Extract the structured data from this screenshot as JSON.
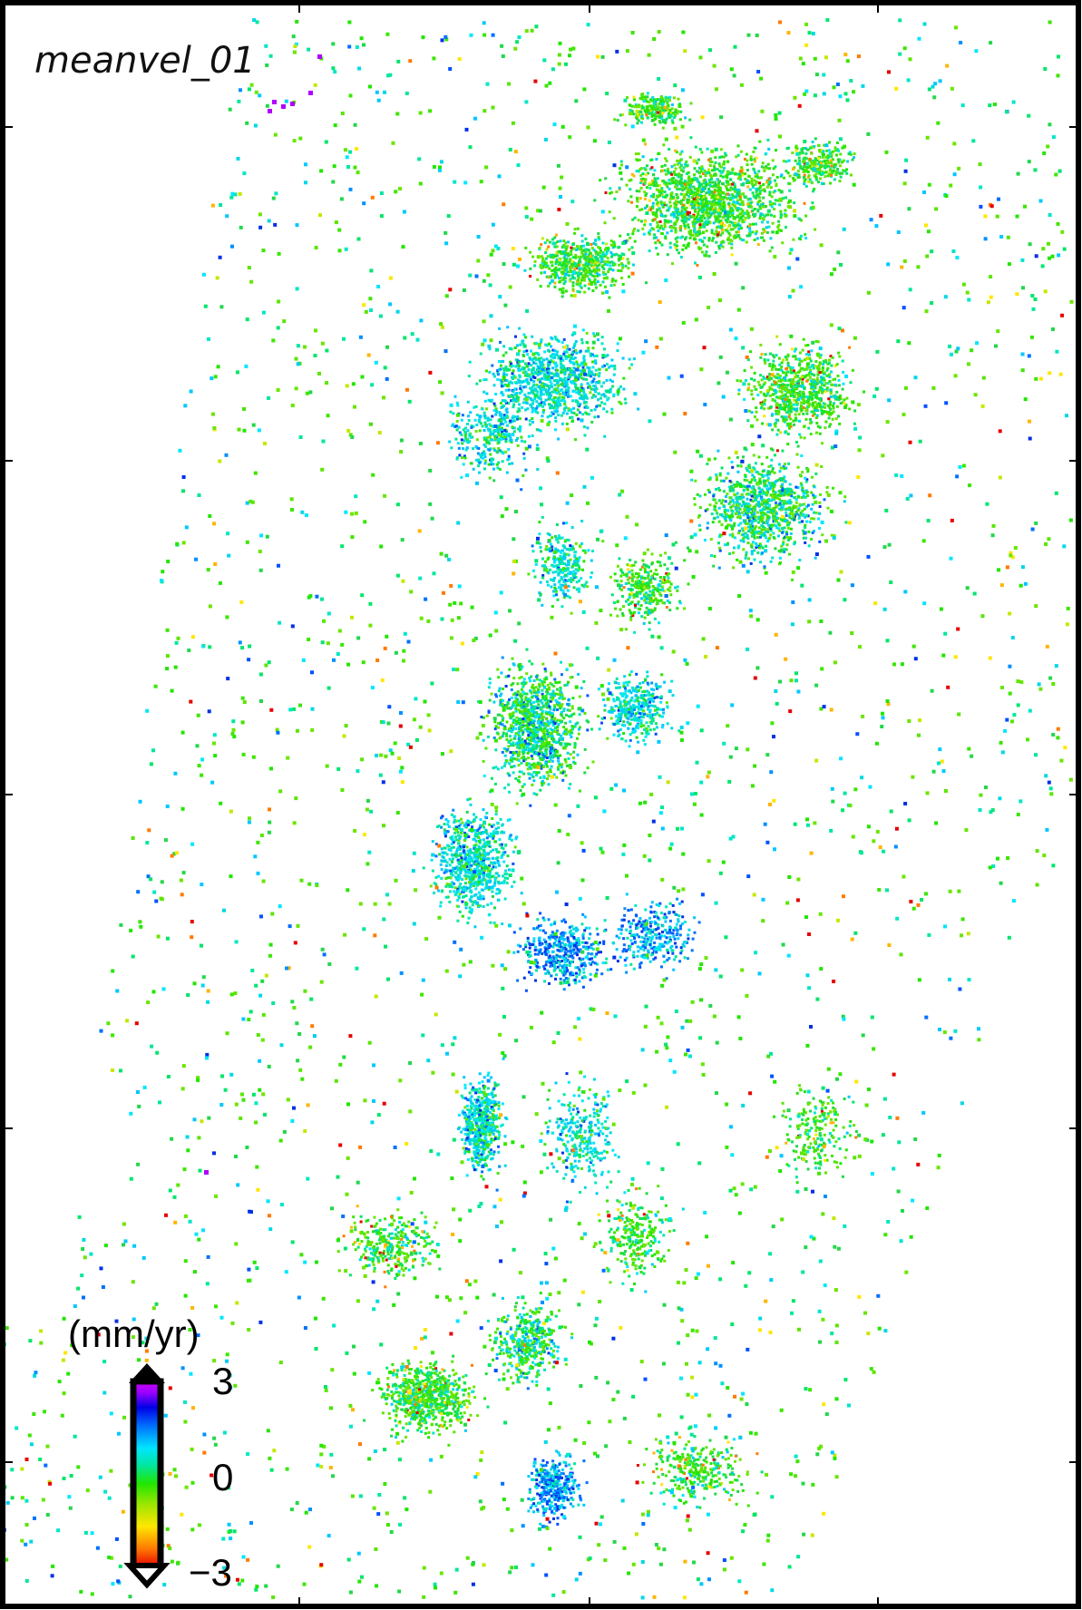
{
  "map": {
    "title": "meanvel_01",
    "colorbar": {
      "unit_label": "(mm/yr)",
      "max_label": "3",
      "mid_label": "0",
      "min_label": "−3",
      "range": [
        -3,
        3
      ],
      "colors_low_to_high": [
        "#e60000",
        "#ff7a00",
        "#ffe600",
        "#9be600",
        "#22e600",
        "#00e6a0",
        "#00e6ff",
        "#0070ff",
        "#0000e6",
        "#9b00ff",
        "#d000ff"
      ],
      "extends": "both"
    },
    "frame": "black border with tick marks"
  }
}
